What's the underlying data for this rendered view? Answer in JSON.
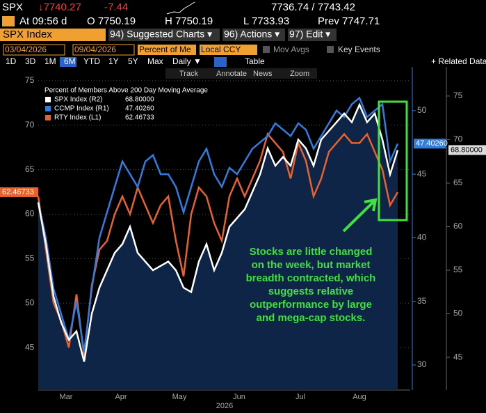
{
  "header": {
    "ticker": "SPX",
    "price": "↓7740.27",
    "change": "-7.44",
    "bid_ask": "7736.74 / 7743.42",
    "time": "At 09:56 d",
    "open": "O 7750.19",
    "high": "H 7750.19",
    "low": "L 7733.93",
    "prev": "Prev 7747.71"
  },
  "menu": {
    "security": "SPX Index",
    "items": [
      "94) Suggested Charts ▾",
      "96) Actions ▾",
      "97) Edit ▾"
    ]
  },
  "controls": {
    "start": "03/04/2026",
    "end": "09/04/2026",
    "field": "Percent of Me",
    "currency": "Local CCY",
    "mov_avgs": "Mov Avgs",
    "key_events": "Key Events"
  },
  "periods": {
    "buttons": [
      "1D",
      "3D",
      "1M",
      "6M",
      "YTD",
      "1Y",
      "5Y",
      "Max"
    ],
    "active": 3,
    "frequency": "Daily ▼",
    "table": "Table",
    "related": "+ Related Data"
  },
  "tools": [
    "Track",
    "Annotate",
    "News",
    "Zoom"
  ],
  "chart_data": {
    "type": "line",
    "legend_title": "Percent of Members Above 200 Day Moving Average",
    "x_labels": [
      "Mar",
      "Apr",
      "May",
      "Jun",
      "Jul",
      "Aug"
    ],
    "x_title": "2026",
    "ylim": [
      40.23,
      76.56
    ],
    "yticks": [
      45,
      50,
      55,
      60,
      65,
      70,
      75
    ],
    "y2lim": [
      28.03,
      53.44
    ],
    "y2ticks": [
      30,
      35,
      40,
      45,
      50
    ],
    "y3lim": [
      41.25,
      78.35
    ],
    "y3ticks": [
      45,
      50,
      55,
      60,
      65,
      70,
      75
    ],
    "series": [
      {
        "name": "SPX Index (R2)",
        "color": "#ffffff",
        "axis": "y3",
        "last_label": "68.80000",
        "values": [
          62.8,
          58,
          52,
          49,
          47,
          48,
          44.5,
          50,
          53,
          55,
          57,
          58,
          60,
          57,
          56,
          55,
          55.5,
          56,
          55,
          53,
          52.5,
          56,
          58,
          55,
          57,
          60,
          61,
          62,
          64,
          66,
          69,
          67,
          68,
          67,
          70,
          69,
          67,
          70,
          71,
          72,
          73,
          72,
          74,
          72,
          73,
          70,
          66,
          68.8
        ]
      },
      {
        "name": "CCMP Index (R1)",
        "color": "#2f7de1",
        "axis": "y2",
        "last_label": "47.40260",
        "values": [
          42.8,
          40,
          36,
          34,
          32,
          35,
          31,
          36,
          40,
          42,
          44,
          46,
          45,
          44,
          46,
          46.5,
          45,
          45,
          44,
          42,
          44,
          46,
          47,
          45,
          44,
          45.5,
          45,
          46,
          47,
          47.5,
          48,
          49,
          48.5,
          48,
          49,
          48.5,
          47,
          48,
          49,
          50,
          49.5,
          50.5,
          51,
          49.5,
          50,
          50.5,
          46,
          47.4026
        ]
      },
      {
        "name": "RTY Index (L1)",
        "color": "#e8622c",
        "axis": "y",
        "last_label": "62.46733",
        "values": [
          62,
          56,
          50,
          48,
          45,
          51,
          44,
          52,
          56,
          57,
          60,
          62,
          60,
          63,
          61,
          59,
          61,
          62,
          57,
          53,
          60,
          63,
          62,
          59,
          57,
          62,
          64,
          62,
          64,
          66,
          69,
          68,
          67,
          64,
          68,
          66,
          62,
          64,
          67,
          68,
          69,
          68,
          68,
          69,
          67,
          65,
          61,
          62.46733
        ]
      }
    ],
    "annotation": [
      "Stocks are little changed",
      "on the week, but market",
      "breadth contracted, which",
      "suggests relative",
      "outperformance by large",
      "and mega-cap stocks."
    ]
  }
}
